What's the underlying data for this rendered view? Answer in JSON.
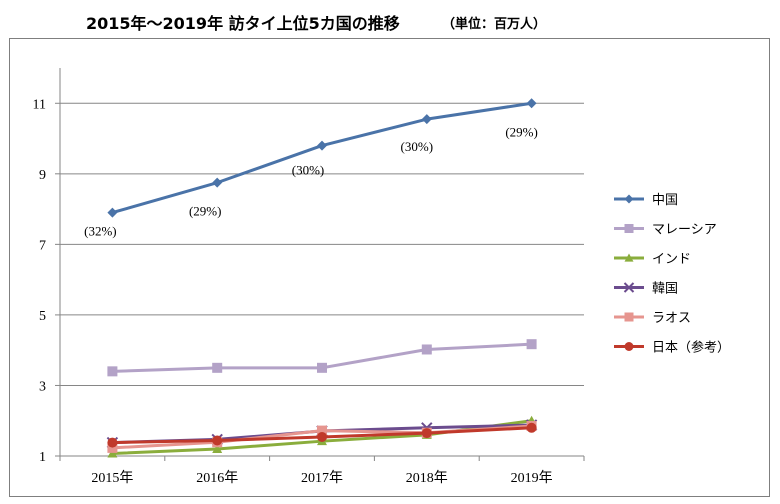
{
  "title": "2015年〜2019年 訪タイ上位5カ国の推移",
  "unit_note": "（単位：百万人）",
  "chart_data": {
    "type": "line",
    "categories": [
      "2015年",
      "2016年",
      "2017年",
      "2018年",
      "2019年"
    ],
    "ylim": [
      1,
      12
    ],
    "yticks": [
      1,
      3,
      5,
      7,
      9,
      11
    ],
    "grid": true,
    "legend_position": "right",
    "series": [
      {
        "name": "中国",
        "values": [
          7.9,
          8.75,
          9.8,
          10.55,
          11.0
        ],
        "color": "#4a73a8",
        "marker": "diamond"
      },
      {
        "name": "マレーシア",
        "values": [
          3.4,
          3.5,
          3.5,
          4.02,
          4.17
        ],
        "color": "#b3a2c7",
        "marker": "square"
      },
      {
        "name": "インド",
        "values": [
          1.07,
          1.2,
          1.42,
          1.6,
          2.0
        ],
        "color": "#8aad3c",
        "marker": "triangle"
      },
      {
        "name": "韓国",
        "values": [
          1.38,
          1.47,
          1.71,
          1.8,
          1.88
        ],
        "color": "#6b4c8e",
        "marker": "x"
      },
      {
        "name": "ラオス",
        "values": [
          1.23,
          1.39,
          1.72,
          1.66,
          1.85
        ],
        "color": "#e6958f",
        "marker": "square"
      },
      {
        "name": "日本（参考）",
        "values": [
          1.38,
          1.44,
          1.54,
          1.65,
          1.8
        ],
        "color": "#c0392b",
        "marker": "circle"
      }
    ],
    "annotations": [
      {
        "series": "中国",
        "index": 0,
        "text": "(32%)"
      },
      {
        "series": "中国",
        "index": 1,
        "text": "(29%)"
      },
      {
        "series": "中国",
        "index": 2,
        "text": "(30%)"
      },
      {
        "series": "中国",
        "index": 3,
        "text": "(30%)"
      },
      {
        "series": "中国",
        "index": 4,
        "text": "(29%)"
      }
    ]
  }
}
